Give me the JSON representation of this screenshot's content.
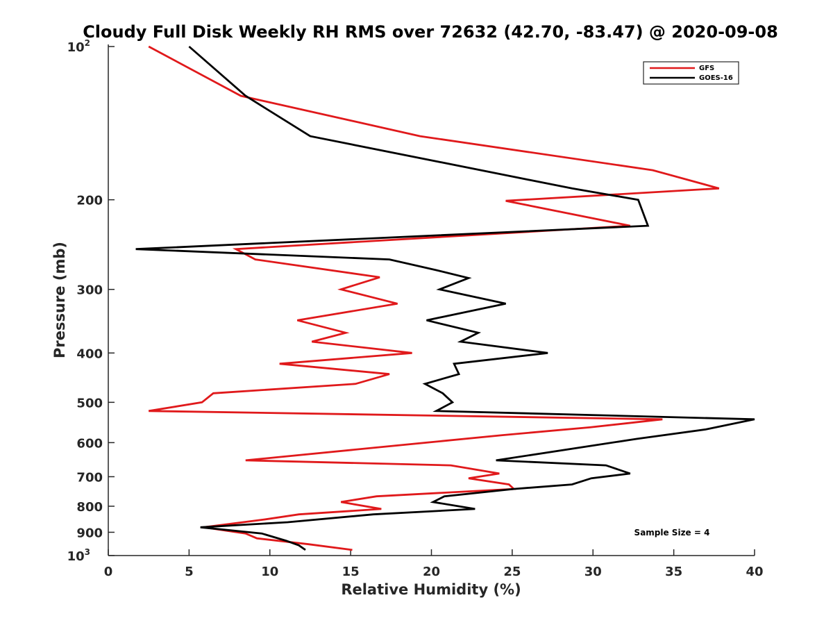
{
  "chart_data": {
    "type": "line",
    "title": "Cloudy Full Disk Weekly RH RMS over 72632 (42.70, -83.47) @ 2020-09-08",
    "xlabel": "Relative Humidity (%)",
    "ylabel": "Pressure (mb)",
    "xlim": [
      0,
      40
    ],
    "ylim": [
      100,
      1000
    ],
    "yscale": "log",
    "y_reversed": true,
    "grid": false,
    "x_ticks": [
      "0",
      "5",
      "10",
      "15",
      "20",
      "25",
      "30",
      "35",
      "40"
    ],
    "x_tick_values": [
      0,
      5,
      10,
      15,
      20,
      25,
      30,
      35,
      40
    ],
    "y_ticks": [
      {
        "value": 100,
        "base": "10",
        "exp": "2"
      },
      {
        "value": 200,
        "base": "200",
        "exp": ""
      },
      {
        "value": 300,
        "base": "300",
        "exp": ""
      },
      {
        "value": 400,
        "base": "400",
        "exp": ""
      },
      {
        "value": 500,
        "base": "500",
        "exp": ""
      },
      {
        "value": 600,
        "base": "600",
        "exp": ""
      },
      {
        "value": 700,
        "base": "700",
        "exp": ""
      },
      {
        "value": 800,
        "base": "800",
        "exp": ""
      },
      {
        "value": 900,
        "base": "900",
        "exp": ""
      },
      {
        "value": 1000,
        "base": "10",
        "exp": "3"
      }
    ],
    "legend": {
      "position": "top-right"
    },
    "annotation": "Sample Size = 4",
    "series": [
      {
        "name": "GFS",
        "color": "#e0191b",
        "points": [
          [
            2.5,
            100
          ],
          [
            8.2,
            125
          ],
          [
            19.3,
            150
          ],
          [
            33.7,
            175
          ],
          [
            37.8,
            190
          ],
          [
            24.6,
            201
          ],
          [
            32.3,
            225
          ],
          [
            7.9,
            250
          ],
          [
            9.1,
            262
          ],
          [
            16.8,
            284
          ],
          [
            14.4,
            300
          ],
          [
            17.9,
            320
          ],
          [
            11.7,
            345
          ],
          [
            14.7,
            365
          ],
          [
            12.6,
            380
          ],
          [
            18.8,
            400
          ],
          [
            10.6,
            420
          ],
          [
            17.4,
            440
          ],
          [
            15.3,
            460
          ],
          [
            6.5,
            480
          ],
          [
            5.8,
            500
          ],
          [
            2.5,
            520
          ],
          [
            34.3,
            540
          ],
          [
            29.8,
            560
          ],
          [
            24.4,
            580
          ],
          [
            8.5,
            650
          ],
          [
            21.2,
            665
          ],
          [
            24.2,
            690
          ],
          [
            22.3,
            705
          ],
          [
            24.8,
            725
          ],
          [
            25.1,
            740
          ],
          [
            16.6,
            765
          ],
          [
            14.4,
            785
          ],
          [
            16.9,
            810
          ],
          [
            11.8,
            830
          ],
          [
            9.6,
            850
          ],
          [
            5.9,
            880
          ],
          [
            8.5,
            905
          ],
          [
            9.2,
            925
          ],
          [
            12.4,
            950
          ],
          [
            15.1,
            975
          ]
        ]
      },
      {
        "name": "GOES-16",
        "color": "#000000",
        "points": [
          [
            5.0,
            100
          ],
          [
            8.5,
            125
          ],
          [
            12.5,
            150
          ],
          [
            28.7,
            190
          ],
          [
            32.8,
            200
          ],
          [
            33.4,
            225
          ],
          [
            1.7,
            250
          ],
          [
            17.4,
            262
          ],
          [
            20.3,
            275
          ],
          [
            22.3,
            285
          ],
          [
            20.5,
            300
          ],
          [
            24.6,
            320
          ],
          [
            19.7,
            345
          ],
          [
            22.9,
            365
          ],
          [
            21.8,
            380
          ],
          [
            27.2,
            400
          ],
          [
            21.4,
            420
          ],
          [
            21.7,
            440
          ],
          [
            19.6,
            460
          ],
          [
            20.7,
            480
          ],
          [
            21.3,
            500
          ],
          [
            20.3,
            520
          ],
          [
            40.0,
            540
          ],
          [
            37.0,
            565
          ],
          [
            32.7,
            590
          ],
          [
            24.0,
            650
          ],
          [
            30.8,
            665
          ],
          [
            32.3,
            690
          ],
          [
            29.9,
            705
          ],
          [
            28.7,
            725
          ],
          [
            25.1,
            740
          ],
          [
            20.8,
            765
          ],
          [
            20.1,
            785
          ],
          [
            22.7,
            810
          ],
          [
            16.4,
            830
          ],
          [
            11.1,
            860
          ],
          [
            5.7,
            880
          ],
          [
            9.5,
            905
          ],
          [
            11.0,
            935
          ],
          [
            11.8,
            955
          ],
          [
            12.2,
            975
          ]
        ]
      }
    ]
  }
}
